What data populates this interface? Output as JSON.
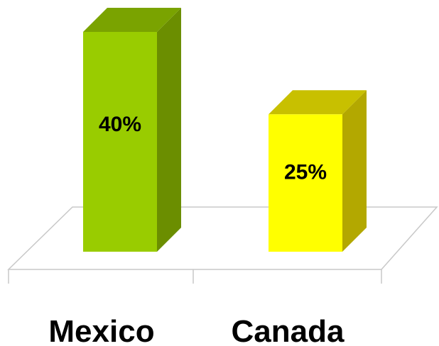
{
  "chart_data": {
    "type": "bar",
    "categories": [
      "Mexico",
      "Canada"
    ],
    "values": [
      40,
      25
    ],
    "value_labels": [
      "40%",
      "25%"
    ],
    "ylim": [
      0,
      50
    ],
    "grid": false,
    "legend": "none",
    "colors": {
      "bars": [
        {
          "front": "#99cc00",
          "side": "#6b8e00",
          "top": "#7aa300"
        },
        {
          "front": "#ffff00",
          "side": "#b3a800",
          "top": "#c8c000"
        }
      ],
      "floor": "#c8c8c8"
    }
  }
}
